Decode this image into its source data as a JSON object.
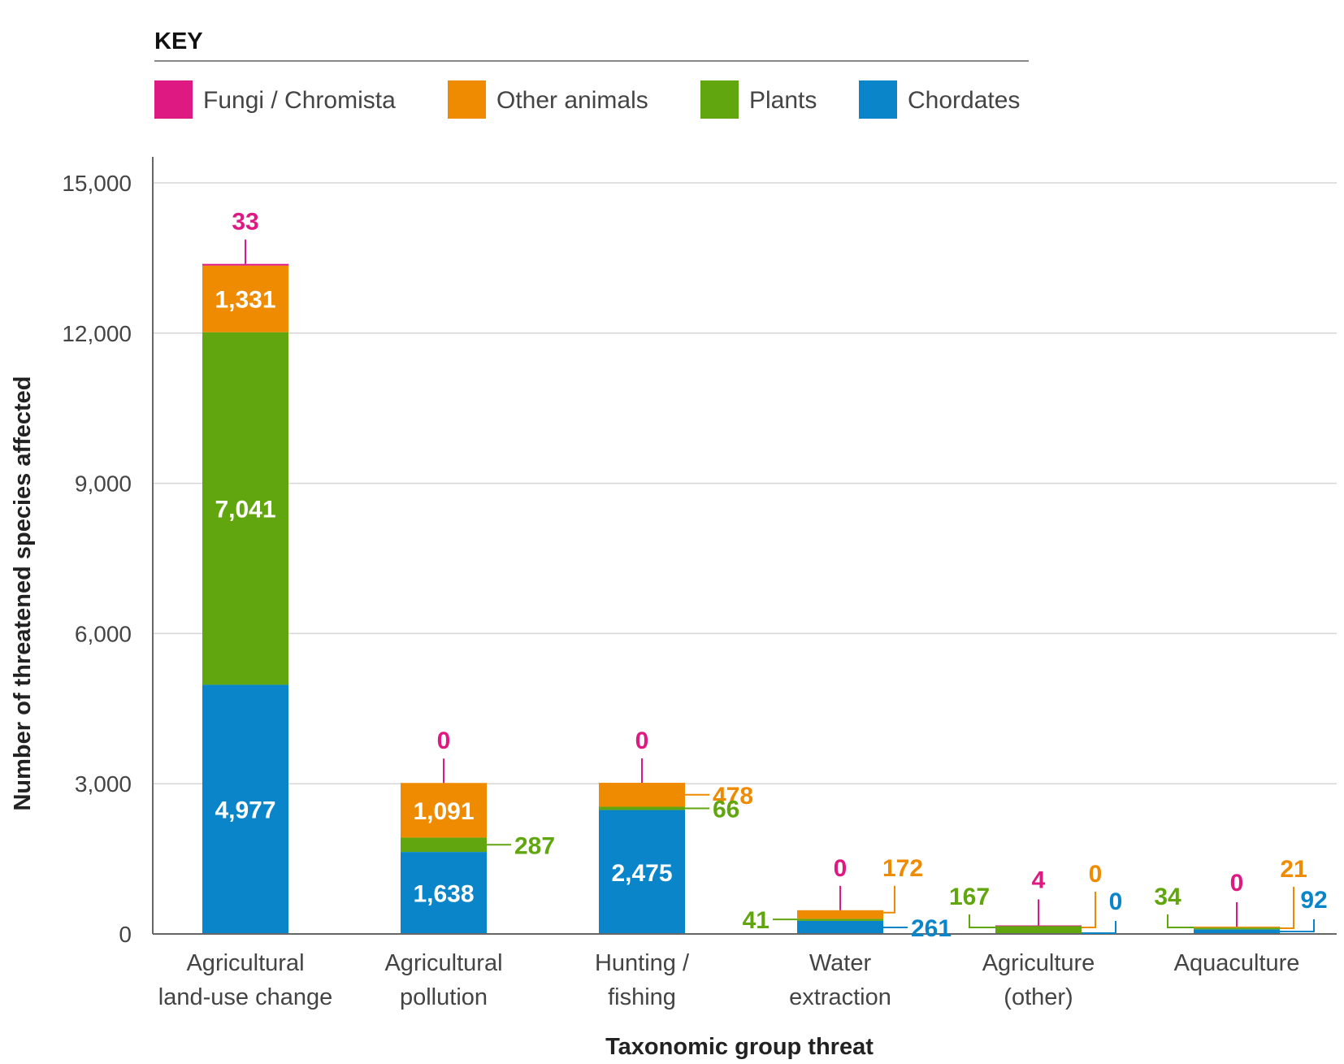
{
  "chart_data": {
    "type": "bar",
    "stacked": true,
    "legend_title": "KEY",
    "xlabel": "Taxonomic group threat",
    "ylabel": "Number of threatened species affected",
    "ylim": [
      0,
      15000
    ],
    "yticks": [
      0,
      3000,
      6000,
      9000,
      12000,
      15000
    ],
    "ytick_labels": [
      "0",
      "3,000",
      "6,000",
      "9,000",
      "12,000",
      "15,000"
    ],
    "categories": [
      [
        "Agricultural",
        "land-use change"
      ],
      [
        "Agricultural",
        "pollution"
      ],
      [
        "Hunting /",
        "fishing"
      ],
      [
        "Water",
        "extraction"
      ],
      [
        "Agriculture",
        "(other)"
      ],
      [
        "Aquaculture"
      ]
    ],
    "legend_order": [
      "Fungi / Chromista",
      "Other animals",
      "Plants",
      "Chordates"
    ],
    "series": [
      {
        "name": "Chordates",
        "color": "#0a85c9",
        "values": [
          4977,
          1638,
          2475,
          261,
          0,
          92
        ],
        "labels": [
          "4,977",
          "1,638",
          "2,475",
          "261",
          "0",
          "92"
        ]
      },
      {
        "name": "Plants",
        "color": "#62a60f",
        "values": [
          7041,
          287,
          66,
          41,
          167,
          34
        ],
        "labels": [
          "7,041",
          "287",
          "66",
          "41",
          "167",
          "34"
        ]
      },
      {
        "name": "Other animals",
        "color": "#ef8b00",
        "values": [
          1331,
          1091,
          478,
          172,
          0,
          21
        ],
        "labels": [
          "1,331",
          "1,091",
          "478",
          "172",
          "0",
          "21"
        ]
      },
      {
        "name": "Fungi / Chromista",
        "color": "#de1a82",
        "values": [
          33,
          0,
          0,
          0,
          4,
          0
        ],
        "labels": [
          "33",
          "0",
          "0",
          "0",
          "4",
          "0"
        ]
      }
    ]
  }
}
